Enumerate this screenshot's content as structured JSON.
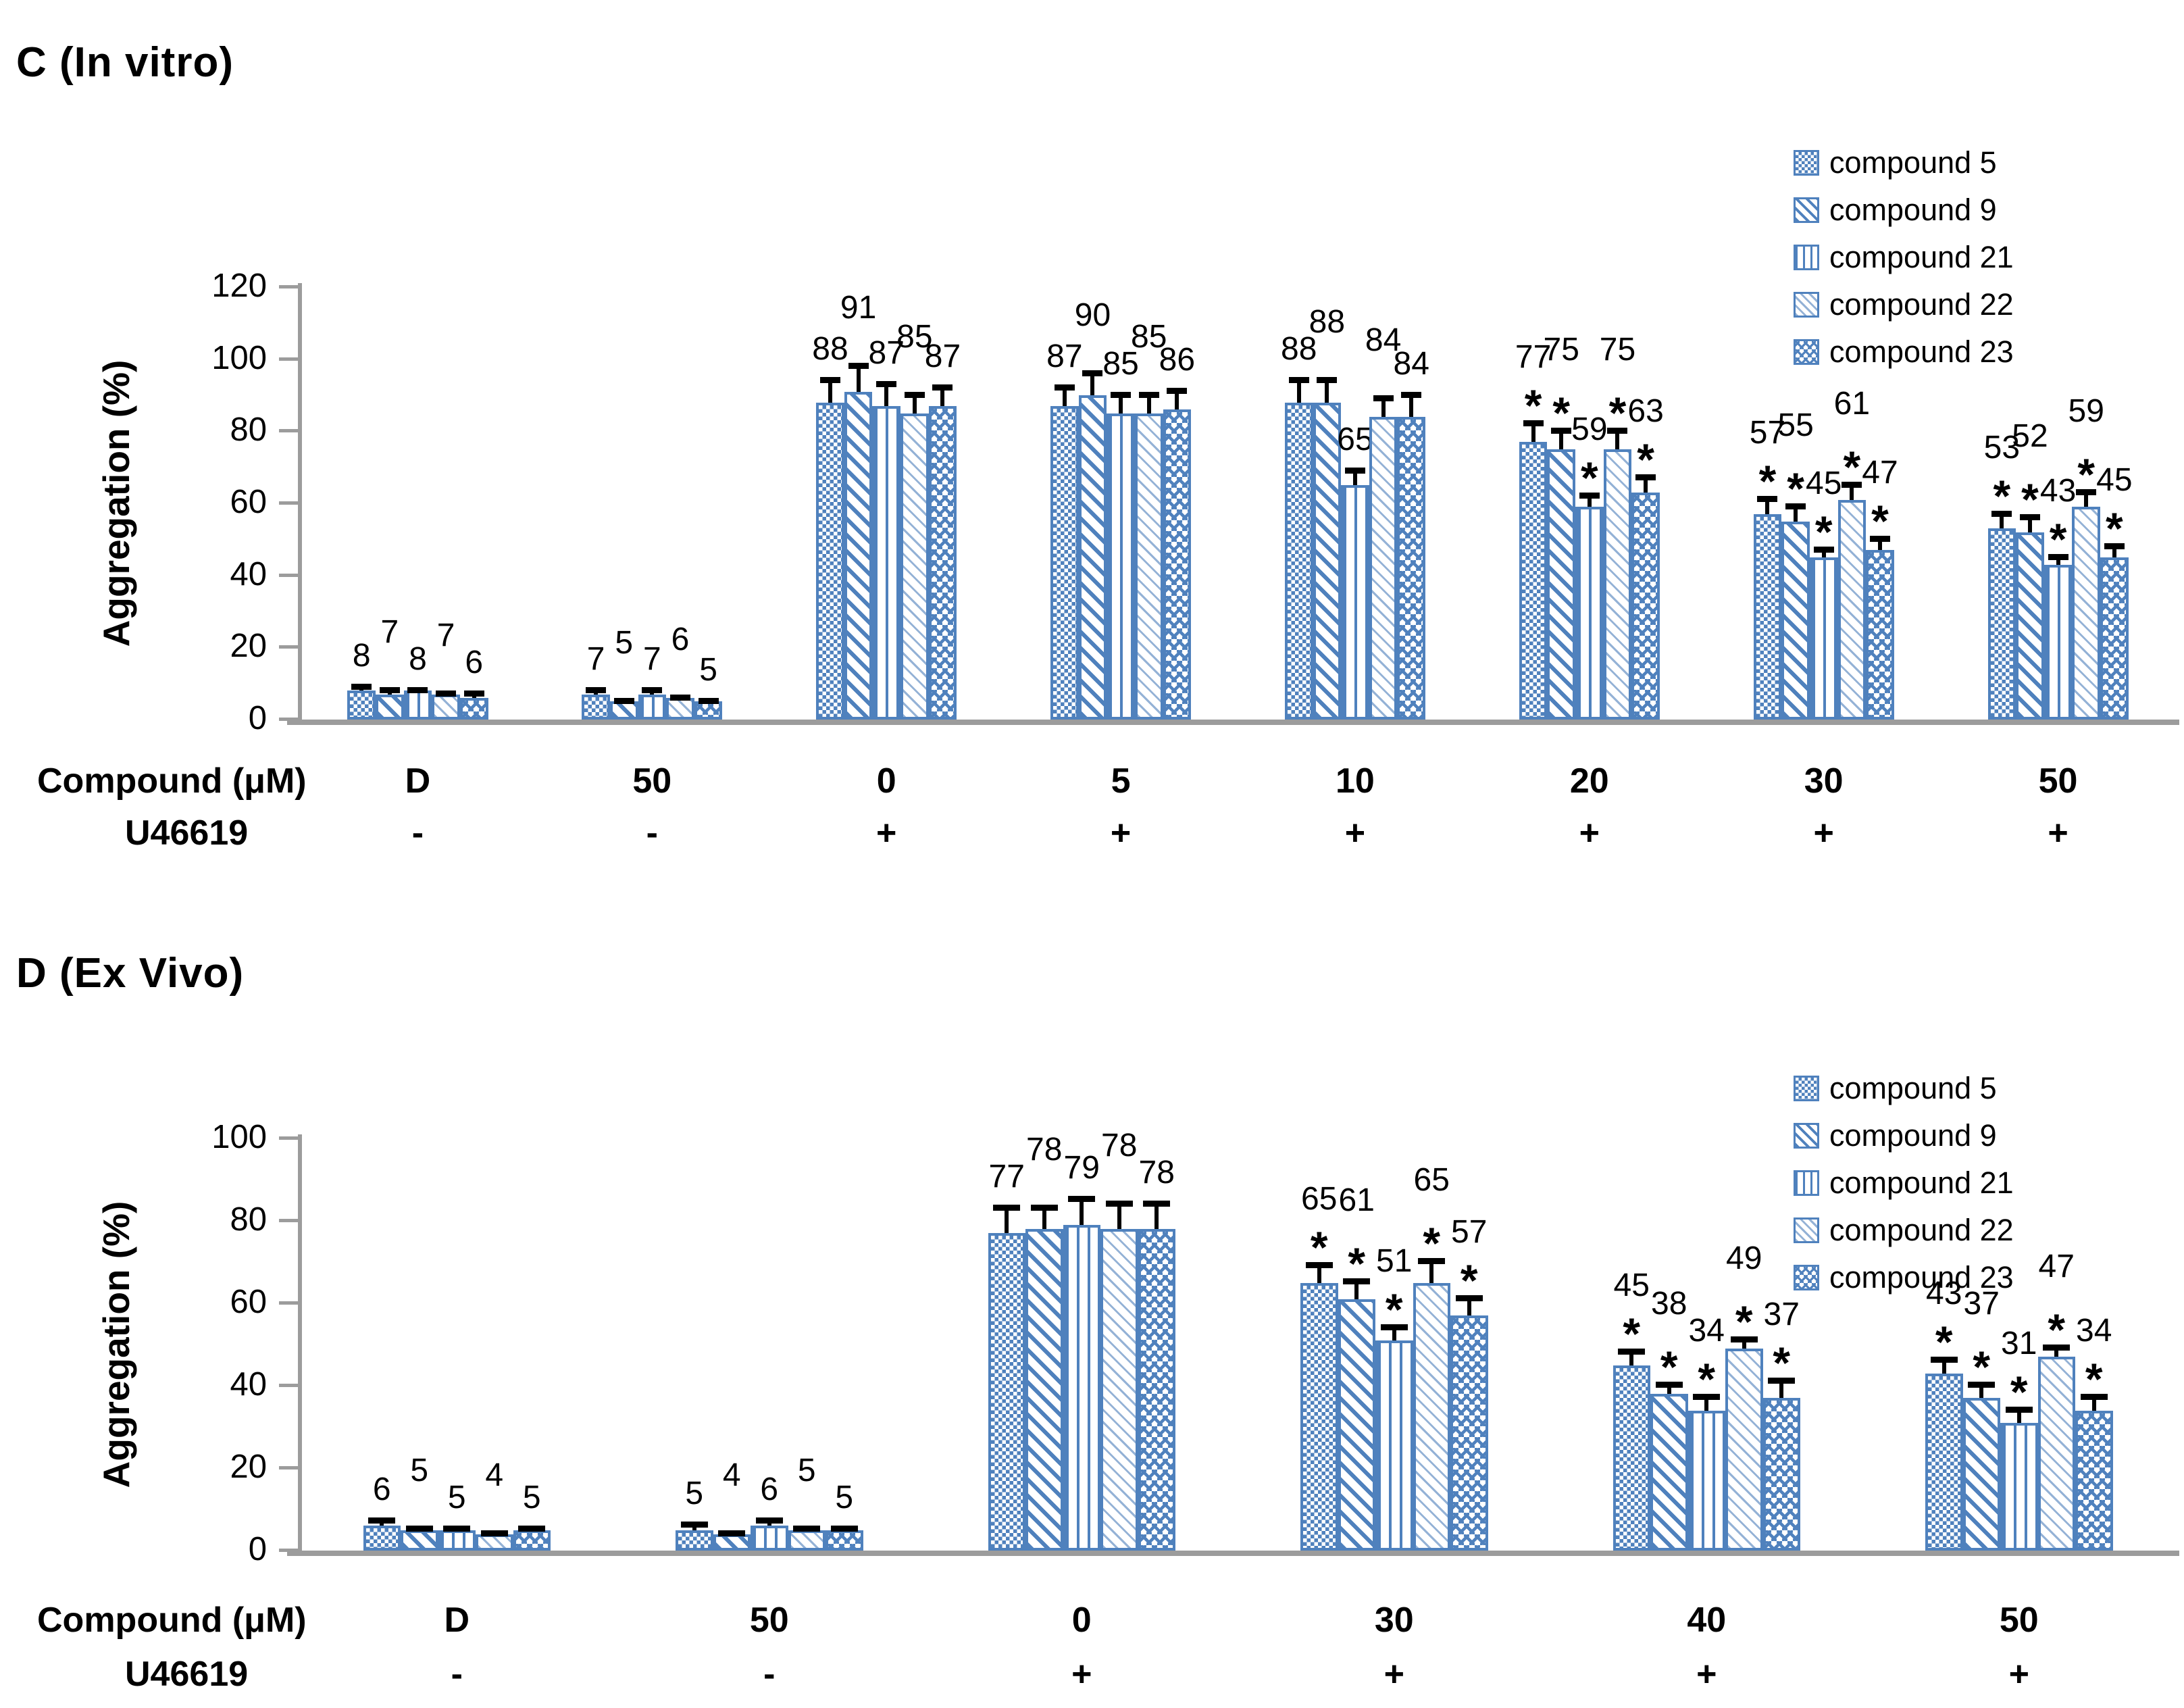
{
  "significance_marker": "*",
  "colors": {
    "bar_blue": "#4f81bd",
    "light_pattern_blue": "#94b2d6",
    "axis_gray": "#9c9c9c",
    "text_black": "#000000"
  },
  "chart_data": [
    {
      "type": "bar",
      "title": "C (In vitro)",
      "ylabel": "Aggregation (%)",
      "ymax": 120,
      "yticks": [
        0,
        20,
        40,
        60,
        80,
        100,
        120
      ],
      "x_row1_label": "Compound (μM)",
      "x_row2_label": "U46619",
      "legend_position": "top-right",
      "grid": "off",
      "series": [
        {
          "name": "compound 5",
          "pattern": "checkerboard"
        },
        {
          "name": "compound 9",
          "pattern": "diagonal-stripes"
        },
        {
          "name": "compound 21",
          "pattern": "vertical-stripes"
        },
        {
          "name": "compound 22",
          "pattern": "light-diagonal-dashes"
        },
        {
          "name": "compound 23",
          "pattern": "zigzag-waves"
        }
      ],
      "groups": [
        {
          "label": "D",
          "u46619": "-",
          "values": [
            8,
            7,
            8,
            7,
            6
          ],
          "errors": [
            2,
            2,
            1,
            1,
            2
          ],
          "significant": [
            false,
            false,
            false,
            false,
            false
          ]
        },
        {
          "label": "50",
          "u46619": "-",
          "values": [
            7,
            5,
            7,
            6,
            5
          ],
          "errors": [
            2,
            1,
            2,
            1,
            1
          ],
          "significant": [
            false,
            false,
            false,
            false,
            false
          ]
        },
        {
          "label": "0",
          "u46619": "+",
          "values": [
            88,
            91,
            87,
            85,
            87
          ],
          "errors": [
            7,
            8,
            7,
            6,
            6
          ],
          "significant": [
            false,
            false,
            false,
            false,
            false
          ]
        },
        {
          "label": "5",
          "u46619": "+",
          "values": [
            87,
            90,
            85,
            85,
            86
          ],
          "errors": [
            6,
            7,
            6,
            6,
            6
          ],
          "significant": [
            false,
            false,
            false,
            false,
            false
          ]
        },
        {
          "label": "10",
          "u46619": "+",
          "values": [
            88,
            88,
            65,
            84,
            84
          ],
          "errors": [
            7,
            7,
            5,
            6,
            7
          ],
          "significant": [
            false,
            false,
            false,
            false,
            false
          ]
        },
        {
          "label": "20",
          "u46619": "+",
          "values": [
            77,
            75,
            59,
            75,
            63
          ],
          "errors": [
            6,
            6,
            4,
            6,
            5
          ],
          "significant": [
            true,
            true,
            true,
            true,
            true
          ]
        },
        {
          "label": "30",
          "u46619": "+",
          "values": [
            57,
            55,
            45,
            61,
            47
          ],
          "errors": [
            5,
            5,
            3,
            5,
            4
          ],
          "significant": [
            true,
            true,
            true,
            true,
            true
          ]
        },
        {
          "label": "50",
          "u46619": "+",
          "values": [
            53,
            52,
            43,
            59,
            45
          ],
          "errors": [
            5,
            5,
            3,
            5,
            4
          ],
          "significant": [
            true,
            true,
            true,
            true,
            true
          ]
        }
      ]
    },
    {
      "type": "bar",
      "title": "D (Ex Vivo)",
      "ylabel": "Aggregation (%)",
      "ymax": 100,
      "yticks": [
        0,
        20,
        40,
        60,
        80,
        100
      ],
      "x_row1_label": "Compound (μM)",
      "x_row2_label": "U46619",
      "legend_position": "top-right",
      "grid": "off",
      "series": [
        {
          "name": "compound 5",
          "pattern": "checkerboard"
        },
        {
          "name": "compound 9",
          "pattern": "diagonal-stripes"
        },
        {
          "name": "compound 21",
          "pattern": "vertical-stripes"
        },
        {
          "name": "compound 22",
          "pattern": "light-diagonal-dashes"
        },
        {
          "name": "compound 23",
          "pattern": "zigzag-waves"
        }
      ],
      "groups": [
        {
          "label": "D",
          "u46619": "-",
          "values": [
            6,
            5,
            5,
            4,
            5
          ],
          "errors": [
            2,
            1,
            1,
            1,
            1
          ],
          "significant": [
            false,
            false,
            false,
            false,
            false
          ]
        },
        {
          "label": "50",
          "u46619": "-",
          "values": [
            5,
            4,
            6,
            5,
            5
          ],
          "errors": [
            2,
            1,
            2,
            1,
            1
          ],
          "significant": [
            false,
            false,
            false,
            false,
            false
          ]
        },
        {
          "label": "0",
          "u46619": "+",
          "values": [
            77,
            78,
            79,
            78,
            78
          ],
          "errors": [
            7,
            6,
            7,
            7,
            7
          ],
          "significant": [
            false,
            false,
            false,
            false,
            false
          ]
        },
        {
          "label": "30",
          "u46619": "+",
          "values": [
            65,
            61,
            51,
            65,
            57
          ],
          "errors": [
            5,
            5,
            4,
            6,
            5
          ],
          "significant": [
            true,
            true,
            true,
            true,
            true
          ]
        },
        {
          "label": "40",
          "u46619": "+",
          "values": [
            45,
            38,
            34,
            49,
            37
          ],
          "errors": [
            4,
            3,
            4,
            3,
            5
          ],
          "significant": [
            true,
            true,
            true,
            true,
            true
          ]
        },
        {
          "label": "50",
          "u46619": "+",
          "values": [
            43,
            37,
            31,
            47,
            34
          ],
          "errors": [
            4,
            4,
            4,
            3,
            4
          ],
          "significant": [
            true,
            true,
            true,
            true,
            true
          ]
        }
      ]
    }
  ]
}
